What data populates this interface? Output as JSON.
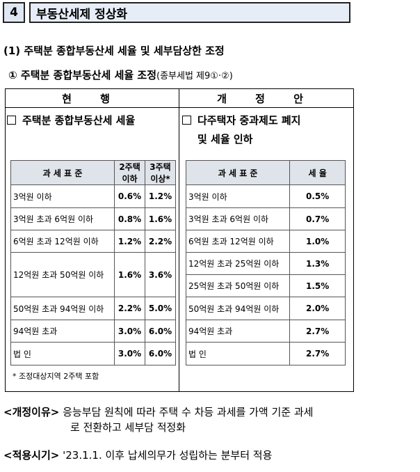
{
  "section": {
    "number": "4",
    "title": "부동산세제 정상화"
  },
  "subheading": "(1) 주택분 종합부동산세 세율 및 세부담상한 조정",
  "subsubheading": {
    "text": "① 주택분 종합부동산세 세율 조정",
    "ref": "(종부세법 제9①·②)"
  },
  "current": {
    "header": "현 행",
    "title": "주택분 종합부동산세 세율",
    "table": {
      "headers": [
        "과 세 표 준",
        "2주택 이하",
        "3주택 이상*"
      ],
      "rows": [
        [
          "3억원 이하",
          "0.6%",
          "1.2%"
        ],
        [
          "3억원 초과 6억원 이하",
          "0.8%",
          "1.6%"
        ],
        [
          "6억원 초과 12억원 이하",
          "1.2%",
          "2.2%"
        ],
        [
          "12억원 초과 50억원 이하",
          "1.6%",
          "3.6%"
        ],
        [
          "50억원 초과 94억원 이하",
          "2.2%",
          "5.0%"
        ],
        [
          "94억원 초과",
          "3.0%",
          "6.0%"
        ],
        [
          "법 인",
          "3.0%",
          "6.0%"
        ]
      ]
    },
    "note": "* 조정대상지역 2주택 포함"
  },
  "proposed": {
    "header": "개 정 안",
    "title_line1": "다주택자 중과제도 폐지",
    "title_line2": "및 세율 인하",
    "table": {
      "headers": [
        "과 세 표 준",
        "세 율"
      ],
      "rows": [
        [
          "3억원 이하",
          "0.5%"
        ],
        [
          "3억원 초과 6억원 이하",
          "0.7%"
        ],
        [
          "6억원 초과 12억원 이하",
          "1.0%"
        ],
        [
          "12억원 초과 25억원 이하",
          "1.3%"
        ],
        [
          "25억원 초과 50억원 이하",
          "1.5%"
        ],
        [
          "50억원 초과 94억원 이하",
          "2.0%"
        ],
        [
          "94억원 초과",
          "2.7%"
        ],
        [
          "법 인",
          "2.7%"
        ]
      ]
    }
  },
  "reason": {
    "label": "<개정이유>",
    "line1": "응능부담 원칙에 따라 주택 수 차등 과세를 가액 기준 과세",
    "line2": "로 전환하고 세부담 적정화"
  },
  "effective": {
    "label": "<적용시기>",
    "text": "'23.1.1. 이후 납세의무가 성립하는 분부터 적용"
  }
}
